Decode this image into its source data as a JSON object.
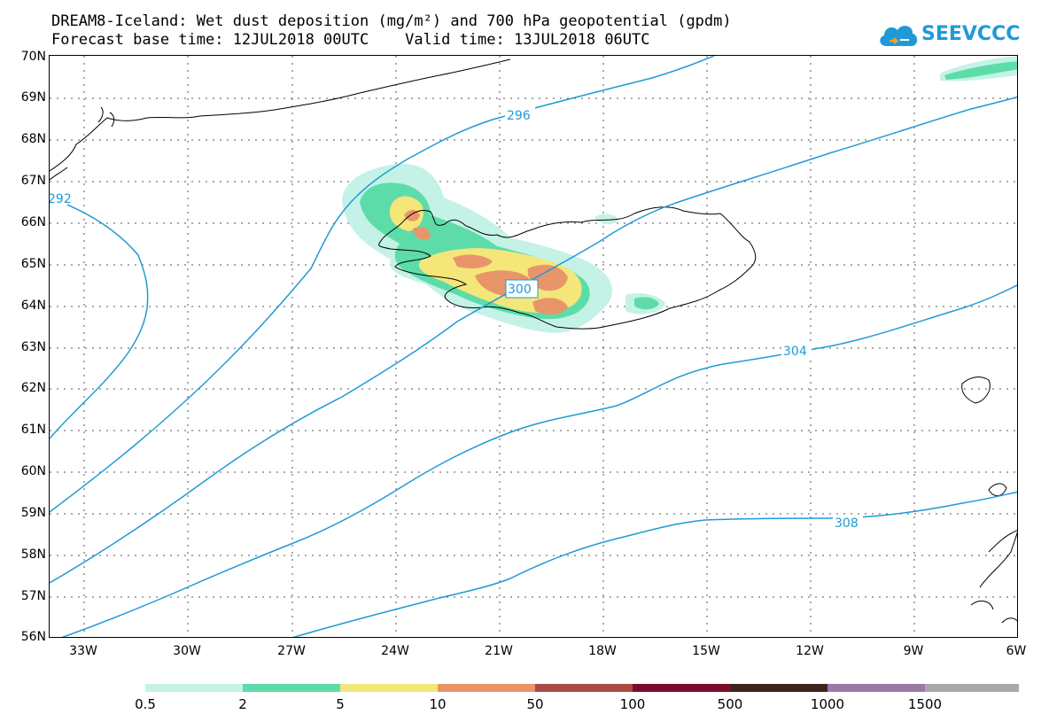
{
  "title": {
    "line1": "DREAM8-Iceland: Wet dust deposition (mg/m²) and 700 hPa geopotential (gpdm)",
    "line2": "Forecast base time: 12JUL2018 00UTC    Valid time: 13JUL2018 06UTC"
  },
  "logo": {
    "text": "SEEVCCC",
    "icon": "cloud-icon"
  },
  "map": {
    "lat_range": [
      56,
      70
    ],
    "lon_range": [
      -34,
      -6
    ],
    "lat_labels": [
      "70N",
      "69N",
      "68N",
      "67N",
      "66N",
      "65N",
      "64N",
      "63N",
      "62N",
      "61N",
      "60N",
      "59N",
      "58N",
      "57N",
      "56N"
    ],
    "lon_labels": [
      "33W",
      "30W",
      "27W",
      "24W",
      "21W",
      "18W",
      "15W",
      "12W",
      "9W",
      "6W"
    ],
    "contour_color": "#1f9ad6",
    "contour_labels": [
      "292",
      "296",
      "300",
      "304",
      "308"
    ]
  },
  "legend": {
    "labels": [
      "0.5",
      "2",
      "5",
      "10",
      "50",
      "100",
      "500",
      "1000",
      "1500"
    ],
    "colors": [
      "#c4f2e6",
      "#5ddcaa",
      "#f5e67a",
      "#e9956a",
      "#a94c45",
      "#7d0b2b",
      "#3b2419",
      "#9a78a8",
      "#a9a9a9"
    ]
  }
}
